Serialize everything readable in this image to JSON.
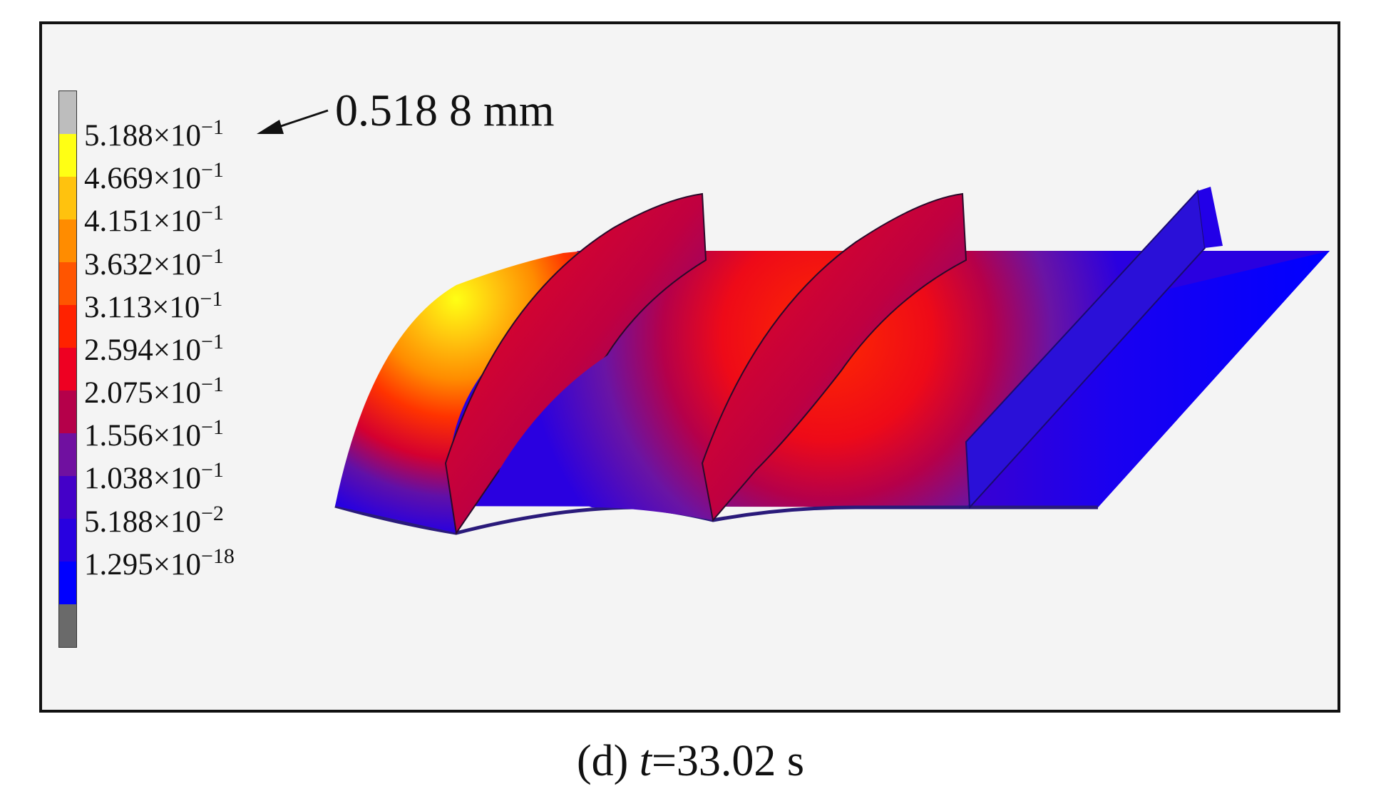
{
  "legend": {
    "colors": [
      "#bdbdbd",
      "#ffff14",
      "#ffc20e",
      "#ff8c00",
      "#ff5500",
      "#ff2200",
      "#ee0022",
      "#b5004a",
      "#7010a0",
      "#4400c8",
      "#2800e0",
      "#0000ff",
      "#6a6a6a"
    ],
    "labels": [
      {
        "mantissa": "5.188",
        "exponent": "−1"
      },
      {
        "mantissa": "4.669",
        "exponent": "−1"
      },
      {
        "mantissa": "4.151",
        "exponent": "−1"
      },
      {
        "mantissa": "3.632",
        "exponent": "−1"
      },
      {
        "mantissa": "3.113",
        "exponent": "−1"
      },
      {
        "mantissa": "2.594",
        "exponent": "−1"
      },
      {
        "mantissa": "2.075",
        "exponent": "−1"
      },
      {
        "mantissa": "1.556",
        "exponent": "−1"
      },
      {
        "mantissa": "1.038",
        "exponent": "−1"
      },
      {
        "mantissa": "5.188",
        "exponent": "−2"
      },
      {
        "mantissa": "1.295",
        "exponent": "−18"
      }
    ],
    "times_symbol": "×10"
  },
  "callout": {
    "text": "0.518 8 mm"
  },
  "caption": {
    "prefix": "(d) ",
    "variable": "t",
    "value": "=33.02 s"
  }
}
